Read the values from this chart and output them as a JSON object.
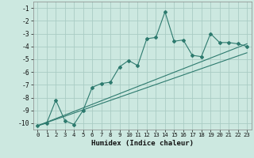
{
  "title": "",
  "xlabel": "Humidex (Indice chaleur)",
  "bg_color": "#cce8e0",
  "grid_color": "#aaccc4",
  "line_color": "#2d7a6e",
  "xlim": [
    -0.5,
    23.5
  ],
  "ylim": [
    -10.5,
    -0.5
  ],
  "yticks": [
    -10,
    -9,
    -8,
    -7,
    -6,
    -5,
    -4,
    -3,
    -2,
    -1
  ],
  "xticks": [
    0,
    1,
    2,
    3,
    4,
    5,
    6,
    7,
    8,
    9,
    10,
    11,
    12,
    13,
    14,
    15,
    16,
    17,
    18,
    19,
    20,
    21,
    22,
    23
  ],
  "series": [
    {
      "x": [
        0,
        1,
        2,
        3,
        4,
        5,
        6,
        7,
        8,
        9,
        10,
        11,
        12,
        13,
        14,
        15,
        16,
        17,
        18,
        19,
        20,
        21,
        22,
        23
      ],
      "y": [
        -10.2,
        -10.0,
        -8.2,
        -9.8,
        -10.1,
        -9.0,
        -7.2,
        -6.9,
        -6.8,
        -5.6,
        -5.1,
        -5.5,
        -3.4,
        -3.3,
        -1.3,
        -3.6,
        -3.5,
        -4.7,
        -4.8,
        -3.0,
        -3.7,
        -3.7,
        -3.8,
        -4.0
      ]
    },
    {
      "x": [
        0,
        23
      ],
      "y": [
        -10.2,
        -4.5
      ]
    },
    {
      "x": [
        0,
        23
      ],
      "y": [
        -10.2,
        -3.8
      ]
    }
  ]
}
